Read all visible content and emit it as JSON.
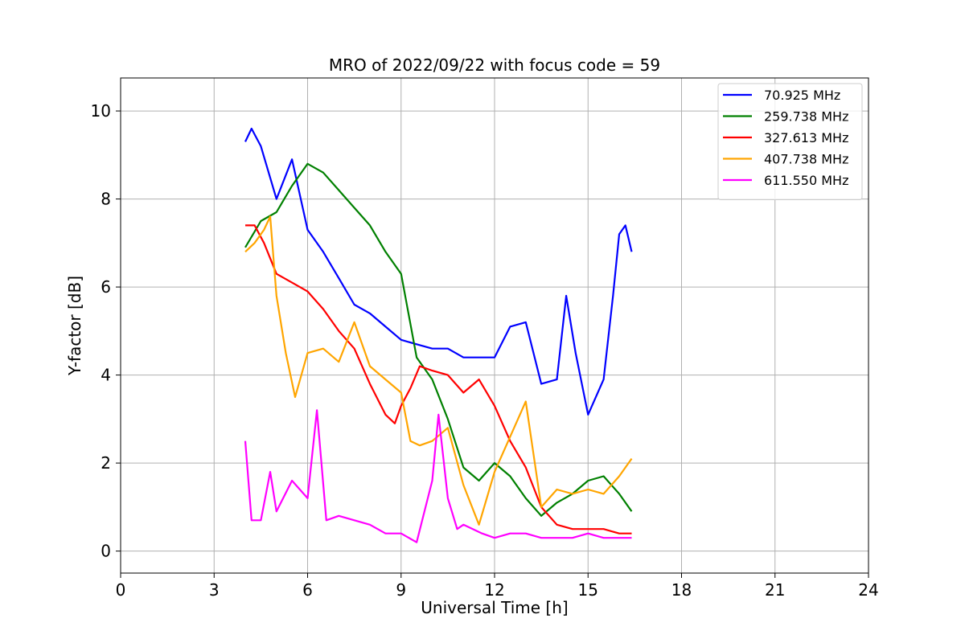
{
  "chart_data": {
    "type": "line",
    "title": "MRO of 2022/09/22 with focus code = 59",
    "xlabel": "Universal Time [h]",
    "ylabel": "Y-factor [dB]",
    "xlim": [
      0,
      24
    ],
    "ylim": [
      -0.5,
      10.75
    ],
    "xticks": [
      0,
      3,
      6,
      9,
      12,
      15,
      18,
      21,
      24
    ],
    "yticks": [
      0,
      2,
      4,
      6,
      8,
      10
    ],
    "grid": true,
    "legend_position": "top-right",
    "series": [
      {
        "name": " 70.925 MHz",
        "color": "#0000ff",
        "x": [
          4.0,
          4.2,
          4.5,
          5.0,
          5.5,
          6.0,
          6.5,
          7.0,
          7.5,
          8.0,
          8.5,
          9.0,
          9.5,
          10.0,
          10.5,
          11.0,
          11.5,
          12.0,
          12.5,
          13.0,
          13.5,
          14.0,
          14.3,
          14.6,
          15.0,
          15.5,
          15.8,
          16.0,
          16.2,
          16.4
        ],
        "y": [
          9.3,
          9.6,
          9.2,
          8.0,
          8.9,
          7.3,
          6.8,
          6.2,
          5.6,
          5.4,
          5.1,
          4.8,
          4.7,
          4.6,
          4.6,
          4.4,
          4.4,
          4.4,
          5.1,
          5.2,
          3.8,
          3.9,
          5.8,
          4.5,
          3.1,
          3.9,
          5.8,
          7.2,
          7.4,
          6.8
        ]
      },
      {
        "name": "259.738 MHz",
        "color": "#008000",
        "x": [
          4.0,
          4.5,
          5.0,
          5.5,
          6.0,
          6.5,
          7.0,
          7.5,
          8.0,
          8.5,
          9.0,
          9.5,
          10.0,
          10.5,
          11.0,
          11.5,
          12.0,
          12.5,
          13.0,
          13.5,
          14.0,
          14.5,
          15.0,
          15.5,
          16.0,
          16.4
        ],
        "y": [
          6.9,
          7.5,
          7.7,
          8.3,
          8.8,
          8.6,
          8.2,
          7.8,
          7.4,
          6.8,
          6.3,
          4.4,
          3.9,
          3.0,
          1.9,
          1.6,
          2.0,
          1.7,
          1.2,
          0.8,
          1.1,
          1.3,
          1.6,
          1.7,
          1.3,
          0.9
        ]
      },
      {
        "name": "327.613 MHz",
        "color": "#ff0000",
        "x": [
          4.0,
          4.3,
          4.6,
          5.0,
          5.5,
          6.0,
          6.5,
          7.0,
          7.5,
          8.0,
          8.5,
          8.8,
          9.0,
          9.3,
          9.6,
          10.0,
          10.5,
          11.0,
          11.5,
          12.0,
          12.5,
          13.0,
          13.5,
          14.0,
          14.5,
          15.0,
          15.5,
          16.0,
          16.4
        ],
        "y": [
          7.4,
          7.4,
          7.0,
          6.3,
          6.1,
          5.9,
          5.5,
          5.0,
          4.6,
          3.8,
          3.1,
          2.9,
          3.3,
          3.7,
          4.2,
          4.1,
          4.0,
          3.6,
          3.9,
          3.3,
          2.5,
          1.9,
          1.0,
          0.6,
          0.5,
          0.5,
          0.5,
          0.4,
          0.4
        ]
      },
      {
        "name": "407.738 MHz",
        "color": "#ffa500",
        "x": [
          4.0,
          4.3,
          4.6,
          4.8,
          5.0,
          5.3,
          5.6,
          6.0,
          6.5,
          7.0,
          7.5,
          8.0,
          8.5,
          9.0,
          9.3,
          9.6,
          10.0,
          10.5,
          11.0,
          11.5,
          12.0,
          12.5,
          13.0,
          13.5,
          14.0,
          14.5,
          15.0,
          15.5,
          16.0,
          16.4
        ],
        "y": [
          6.8,
          7.0,
          7.3,
          7.6,
          5.8,
          4.5,
          3.5,
          4.5,
          4.6,
          4.3,
          5.2,
          4.2,
          3.9,
          3.6,
          2.5,
          2.4,
          2.5,
          2.8,
          1.5,
          0.6,
          1.8,
          2.6,
          3.4,
          1.0,
          1.4,
          1.3,
          1.4,
          1.3,
          1.7,
          2.1
        ]
      },
      {
        "name": "611.550 MHz",
        "color": "#ff00ff",
        "x": [
          4.0,
          4.2,
          4.5,
          4.8,
          5.0,
          5.5,
          6.0,
          6.3,
          6.6,
          7.0,
          7.5,
          8.0,
          8.5,
          9.0,
          9.5,
          10.0,
          10.2,
          10.5,
          10.8,
          11.0,
          11.3,
          11.6,
          12.0,
          12.5,
          13.0,
          13.5,
          14.0,
          14.5,
          15.0,
          15.5,
          16.0,
          16.4
        ],
        "y": [
          2.5,
          0.7,
          0.7,
          1.8,
          0.9,
          1.6,
          1.2,
          3.2,
          0.7,
          0.8,
          0.7,
          0.6,
          0.4,
          0.4,
          0.2,
          1.6,
          3.1,
          1.2,
          0.5,
          0.6,
          0.5,
          0.4,
          0.3,
          0.4,
          0.4,
          0.3,
          0.3,
          0.3,
          0.4,
          0.3,
          0.3,
          0.3
        ]
      }
    ]
  }
}
